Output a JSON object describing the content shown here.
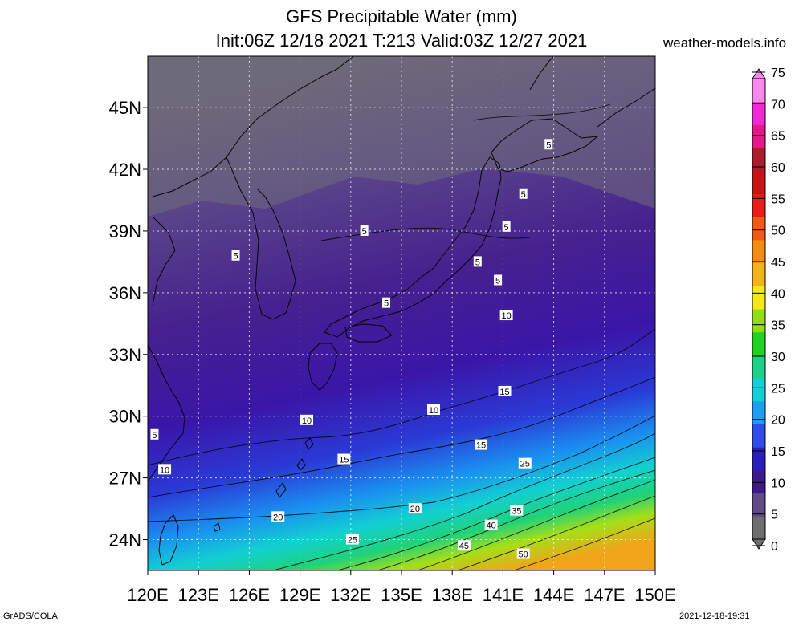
{
  "title": "GFS Precipitable Water (mm)",
  "subtitle": "Init:06Z 12/18 2021 T:213 Valid:03Z 12/27 2021",
  "site": "weather-models.info",
  "footer_left": "GrADS/COLA",
  "footer_right": "2021-12-18-19:31",
  "map": {
    "lon_range": [
      120,
      150
    ],
    "lat_range": [
      22.5,
      47.5
    ],
    "lon_ticks": [
      "120E",
      "123E",
      "126E",
      "129E",
      "132E",
      "135E",
      "138E",
      "141E",
      "144E",
      "147E",
      "150E"
    ],
    "lon_values": [
      120,
      123,
      126,
      129,
      132,
      135,
      138,
      141,
      144,
      147,
      150
    ],
    "lat_ticks": [
      "24N",
      "27N",
      "30N",
      "33N",
      "36N",
      "39N",
      "42N",
      "45N"
    ],
    "lat_values": [
      24,
      27,
      30,
      33,
      36,
      39,
      42,
      45
    ],
    "grid": true,
    "contour_labels": [
      {
        "text": "5",
        "lon": 143.7,
        "lat": 43.2
      },
      {
        "text": "5",
        "lon": 142.2,
        "lat": 40.8
      },
      {
        "text": "5",
        "lon": 141.2,
        "lat": 39.2
      },
      {
        "text": "5",
        "lon": 132.8,
        "lat": 39.0
      },
      {
        "text": "5",
        "lon": 125.2,
        "lat": 37.8
      },
      {
        "text": "5",
        "lon": 139.5,
        "lat": 37.5
      },
      {
        "text": "5",
        "lon": 140.7,
        "lat": 36.6
      },
      {
        "text": "5",
        "lon": 134.1,
        "lat": 35.5
      },
      {
        "text": "5",
        "lon": 120.4,
        "lat": 29.1
      },
      {
        "text": "10",
        "lon": 141.2,
        "lat": 34.9
      },
      {
        "text": "10",
        "lon": 136.9,
        "lat": 30.3
      },
      {
        "text": "10",
        "lon": 129.4,
        "lat": 29.8
      },
      {
        "text": "10",
        "lon": 121.0,
        "lat": 27.4
      },
      {
        "text": "15",
        "lon": 141.1,
        "lat": 31.2
      },
      {
        "text": "15",
        "lon": 139.7,
        "lat": 28.6
      },
      {
        "text": "15",
        "lon": 131.6,
        "lat": 27.9
      },
      {
        "text": "20",
        "lon": 135.8,
        "lat": 25.5
      },
      {
        "text": "20",
        "lon": 127.7,
        "lat": 25.1
      },
      {
        "text": "25",
        "lon": 142.3,
        "lat": 27.7
      },
      {
        "text": "25",
        "lon": 132.1,
        "lat": 24.0
      },
      {
        "text": "35",
        "lon": 141.8,
        "lat": 25.4
      },
      {
        "text": "40",
        "lon": 140.3,
        "lat": 24.7
      },
      {
        "text": "45",
        "lon": 138.7,
        "lat": 23.7
      },
      {
        "text": "50",
        "lon": 142.2,
        "lat": 23.3
      }
    ]
  },
  "colorbar": {
    "labels": [
      "0",
      "5",
      "10",
      "15",
      "20",
      "25",
      "30",
      "35",
      "40",
      "45",
      "50",
      "55",
      "60",
      "65",
      "70",
      "75"
    ],
    "colors": [
      "#6e6e6e",
      "#5e4c88",
      "#3c1a8a",
      "#2c1eb8",
      "#2e4ee6",
      "#1e9ef2",
      "#12cfd8",
      "#1ed08a",
      "#22d21e",
      "#94dc18",
      "#f2e81a",
      "#f2b41a",
      "#f28c14",
      "#f05a14",
      "#e81e14",
      "#c81414",
      "#a81e2c",
      "#e21a8c",
      "#f02ad2",
      "#f888ec"
    ]
  }
}
